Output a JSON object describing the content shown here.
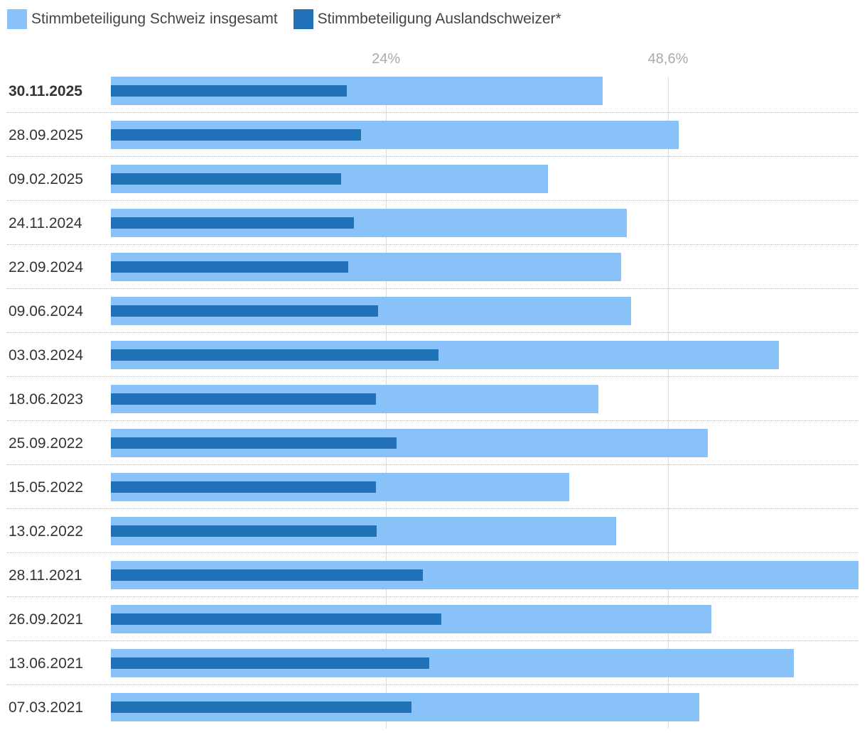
{
  "chart_data": {
    "type": "bar",
    "orientation": "horizontal",
    "categories": [
      "30.11.2025",
      "28.09.2025",
      "09.02.2025",
      "24.11.2024",
      "22.09.2024",
      "09.06.2024",
      "03.03.2024",
      "18.06.2023",
      "25.09.2022",
      "15.05.2022",
      "13.02.2022",
      "28.11.2021",
      "26.09.2021",
      "13.06.2021",
      "07.03.2021"
    ],
    "series": [
      {
        "name": "Stimmbeteiligung Schweiz insgesamt",
        "color": "#88c2f9",
        "values": [
          42.9,
          49.5,
          38.1,
          45.0,
          44.5,
          45.4,
          58.3,
          42.5,
          52.1,
          40.0,
          44.1,
          65.2,
          52.4,
          59.6,
          51.3
        ]
      },
      {
        "name": "Stimmbeteiligung Auslandschweizer*",
        "color": "#2171b9",
        "values": [
          20.6,
          21.8,
          20.1,
          21.2,
          20.7,
          23.3,
          28.6,
          23.1,
          24.9,
          23.1,
          23.2,
          27.2,
          28.8,
          27.8,
          26.2
        ]
      }
    ],
    "ticks": [
      {
        "value": 24,
        "label": "24%"
      },
      {
        "value": 48.6,
        "label": "48,6%"
      }
    ],
    "xlim": [
      0,
      65.2
    ],
    "grid": true,
    "legend": "top-left"
  }
}
